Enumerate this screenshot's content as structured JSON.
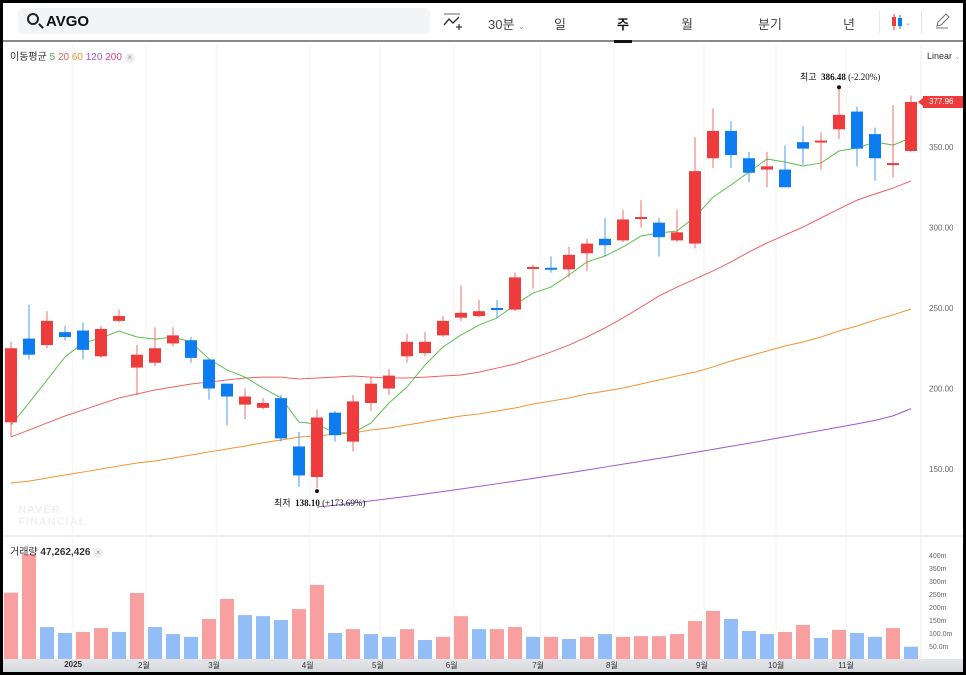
{
  "toolbar": {
    "symbol": "AVGO",
    "interval_label": "30분",
    "periods": [
      "일",
      "주",
      "월",
      "분기",
      "년"
    ],
    "active_period": "주"
  },
  "legend": {
    "ma_label": "이동평균",
    "ma_periods": [
      "5",
      "20",
      "60",
      "120",
      "200"
    ],
    "ma_colors": [
      "#4caf50",
      "#f06060",
      "#f5922f",
      "#9c59d1",
      "#e0457b"
    ],
    "scale_label": "Linear",
    "volume_label": "거래량",
    "volume_value": "47,262,426",
    "close_symbol": "×"
  },
  "watermark": "NAVER FINANCIAL",
  "colors": {
    "up": "#ee3b3b",
    "down": "#0c7cf0",
    "up_vol": "#f8a0a0",
    "down_vol": "#93bdf7"
  },
  "chart_data": {
    "type": "candlestick",
    "price_axis": {
      "ticks": [
        "350.00",
        "300.00",
        "250.00",
        "200.00",
        "150.00"
      ],
      "tick_values": [
        350,
        300,
        250,
        200,
        150
      ]
    },
    "current_price": "377.96",
    "high_note": {
      "label": "최고",
      "value": "386.48",
      "change": "(-2.20%)",
      "index": 46,
      "price": 386.48
    },
    "low_note": {
      "label": "최저",
      "value": "138.10",
      "change": "(+173.69%)",
      "index": 17,
      "price": 138.1
    },
    "candles": [
      [
        179,
        229,
        170,
        225
      ],
      [
        231,
        252,
        218,
        221
      ],
      [
        227,
        248,
        225,
        242
      ],
      [
        235,
        239,
        230,
        232
      ],
      [
        236,
        241,
        218,
        224
      ],
      [
        220,
        239,
        219,
        237
      ],
      [
        242,
        249,
        241,
        245
      ],
      [
        213,
        227,
        196,
        221
      ],
      [
        216,
        238,
        214,
        225
      ],
      [
        228,
        238,
        226,
        233
      ],
      [
        230,
        232,
        216,
        219
      ],
      [
        218,
        218,
        193,
        200
      ],
      [
        203,
        203,
        177,
        195
      ],
      [
        190,
        200,
        181,
        195
      ],
      [
        188,
        194,
        187,
        191
      ],
      [
        194,
        196,
        167,
        169
      ],
      [
        164,
        173,
        138.8,
        146
      ],
      [
        145,
        187,
        138.1,
        182
      ],
      [
        185,
        186,
        167,
        171
      ],
      [
        167,
        196,
        161,
        192
      ],
      [
        191,
        207,
        186,
        203
      ],
      [
        200,
        212,
        196,
        208
      ],
      [
        220,
        234,
        216,
        229
      ],
      [
        222,
        235,
        220,
        229
      ],
      [
        233,
        245,
        232,
        242
      ],
      [
        244,
        264,
        242,
        247
      ],
      [
        245,
        255,
        244,
        248
      ],
      [
        250,
        255,
        244,
        249
      ],
      [
        249,
        272,
        248,
        269
      ],
      [
        275,
        277,
        262,
        275.5
      ],
      [
        275,
        282,
        272,
        274.5
      ],
      [
        274,
        288,
        269,
        283
      ],
      [
        284,
        293,
        273,
        290
      ],
      [
        293,
        306,
        282,
        289
      ],
      [
        292,
        311,
        291,
        305
      ],
      [
        305.5,
        317,
        300,
        306.5
      ],
      [
        303,
        306,
        282,
        294
      ],
      [
        292,
        311,
        291,
        297
      ],
      [
        290,
        356,
        287,
        335
      ],
      [
        343,
        374,
        337,
        360
      ],
      [
        360,
        366,
        337,
        345
      ],
      [
        343,
        347,
        328,
        334
      ],
      [
        336,
        347,
        325,
        338
      ],
      [
        336,
        351,
        325,
        325
      ],
      [
        353,
        363,
        339,
        349
      ],
      [
        353.5,
        359,
        336,
        354
      ],
      [
        361,
        386.48,
        355,
        370
      ],
      [
        372,
        375,
        338,
        349
      ],
      [
        358,
        362,
        329,
        343
      ],
      [
        339.5,
        376,
        331,
        340
      ],
      [
        347.5,
        382,
        347,
        377.96
      ]
    ],
    "ma5": [
      177.3,
      191,
      205.3,
      219.6,
      228.3,
      231.4,
      235.7,
      232,
      230.7,
      232,
      228.9,
      218.3,
      211.5,
      207.1,
      200.3,
      194.1,
      179.2,
      177.9,
      172.4,
      172.4,
      178.6,
      191,
      200.9,
      214.6,
      225.8,
      233.2,
      239.4,
      243.8,
      251.9,
      259.3,
      263,
      270.5,
      278.6,
      282.3,
      287.9,
      294.7,
      296.6,
      297.8,
      306.5,
      318.9,
      326.4,
      334.5,
      342.5,
      340.7,
      338.2,
      340.1,
      347.5,
      349.4,
      353.1,
      351.2,
      355.6
    ],
    "ma20": [
      169.9,
      174.2,
      178.6,
      182.9,
      186.6,
      190.4,
      194.1,
      196.6,
      199.1,
      200.9,
      202.8,
      204,
      205.3,
      206.5,
      207.1,
      207.1,
      205.9,
      206.5,
      207.1,
      207.8,
      207.1,
      206.5,
      206.5,
      207.1,
      207.8,
      208.4,
      210.2,
      212.7,
      215.2,
      218.9,
      222.7,
      227,
      232,
      237.6,
      243.8,
      250.6,
      257.5,
      263,
      268,
      273,
      278.6,
      284.8,
      290.4,
      295.3,
      300.3,
      305.9,
      311.5,
      317,
      320.8,
      324.5,
      328.9
    ],
    "ma60": [
      141.3,
      142.5,
      144.4,
      146.3,
      148.1,
      150,
      151.9,
      153.7,
      155,
      156.8,
      158.7,
      160.6,
      162.4,
      164.3,
      166.3,
      168,
      169.9,
      170.5,
      171.7,
      172.4,
      174.2,
      175.5,
      177.3,
      179.2,
      181.1,
      182.9,
      184.2,
      186,
      187.9,
      190.4,
      192.2,
      194.1,
      196.6,
      198.4,
      200.3,
      202.8,
      205.3,
      207.8,
      210.2,
      213.4,
      217.1,
      220.2,
      223.3,
      226.4,
      228.9,
      232,
      235.7,
      238.8,
      242.5,
      245.7,
      249.4
    ],
    "ma120": [
      null,
      null,
      null,
      null,
      null,
      null,
      null,
      null,
      null,
      null,
      null,
      null,
      null,
      null,
      null,
      null,
      null,
      126.4,
      127.5,
      128.8,
      130.2,
      131.6,
      133,
      134.5,
      136,
      137.6,
      139.2,
      140.8,
      142.5,
      144.2,
      145.9,
      147.6,
      149.4,
      151.2,
      153,
      154.8,
      156.6,
      158.4,
      160.3,
      162.2,
      164.1,
      166,
      168,
      170,
      172,
      174,
      176,
      178,
      180.2,
      183,
      187.5
    ],
    "volume_axis": {
      "ticks": [
        "400m",
        "350m",
        "300m",
        "250m",
        "200m",
        "150m",
        "100.0m",
        "50.0m"
      ],
      "tick_values": [
        400,
        350,
        300,
        250,
        200,
        150,
        100,
        50
      ]
    },
    "volume_m": [
      255,
      404,
      123,
      100,
      104,
      119,
      104,
      254,
      123,
      96,
      85,
      154,
      231,
      169,
      165,
      150,
      192,
      285,
      100,
      115,
      96,
      85,
      115,
      73,
      85,
      165,
      115,
      115,
      123,
      85,
      85,
      77,
      85,
      96,
      85,
      88,
      88,
      96,
      146,
      185,
      154,
      108,
      96,
      104,
      131,
      81,
      112,
      100,
      85,
      119,
      47.3
    ],
    "volume_up": [
      1,
      1,
      0,
      0,
      1,
      1,
      0,
      1,
      0,
      0,
      0,
      1,
      1,
      0,
      0,
      0,
      1,
      1,
      0,
      1,
      0,
      0,
      1,
      0,
      1,
      1,
      0,
      1,
      1,
      0,
      1,
      0,
      1,
      0,
      1,
      1,
      1,
      1,
      1,
      1,
      0,
      0,
      0,
      1,
      1,
      0,
      1,
      0,
      0,
      1,
      0
    ],
    "x_labels": [
      {
        "label": "2025",
        "at_index": 3.4
      },
      {
        "label": "2월",
        "at_index": 7.5
      },
      {
        "label": "3월",
        "at_index": 11.4
      },
      {
        "label": "4월",
        "at_index": 16.6
      },
      {
        "label": "5월",
        "at_index": 20.5
      },
      {
        "label": "6월",
        "at_index": 24.6
      },
      {
        "label": "7월",
        "at_index": 29.4
      },
      {
        "label": "8월",
        "at_index": 33.5
      },
      {
        "label": "9월",
        "at_index": 38.5
      },
      {
        "label": "10월",
        "at_index": 42.5
      },
      {
        "label": "11월",
        "at_index": 46.4
      }
    ]
  }
}
